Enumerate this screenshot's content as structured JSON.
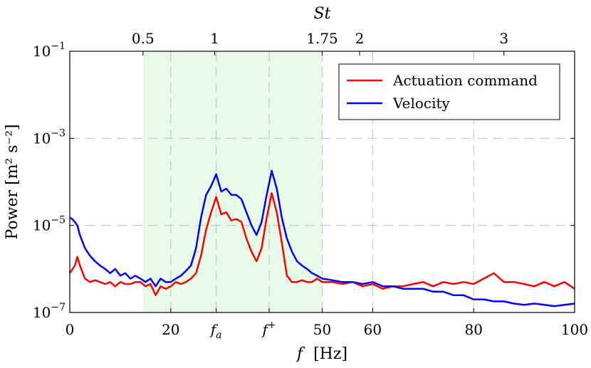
{
  "chart_data": {
    "type": "line",
    "xlabel_var": "f",
    "xlabel_unit": "[Hz]",
    "ylabel": "Power [m² s⁻²]",
    "top_axis_label": "St",
    "yscale": "log",
    "xlim": [
      0,
      100
    ],
    "ylim": [
      1e-07,
      0.1
    ],
    "grid": "dashed",
    "legend_position": "top-right",
    "shaded_band": {
      "x": [
        14.5,
        50
      ],
      "color": "#e8fbe8"
    },
    "x_ticks": [
      {
        "value": 0,
        "label": "0",
        "kind": "text"
      },
      {
        "value": 20,
        "label": "20",
        "kind": "text"
      },
      {
        "value": 29,
        "label": "f",
        "sub": "a",
        "kind": "sub"
      },
      {
        "value": 39.5,
        "label": "f",
        "sup": "+",
        "kind": "sup"
      },
      {
        "value": 50,
        "label": "50",
        "kind": "text"
      },
      {
        "value": 60,
        "label": "60",
        "kind": "text"
      },
      {
        "value": 80,
        "label": "80",
        "kind": "text"
      },
      {
        "value": 100,
        "label": "100",
        "kind": "text"
      }
    ],
    "top_ticks": [
      {
        "x": 14.5,
        "label": "0.5"
      },
      {
        "x": 28.7,
        "label": "1"
      },
      {
        "x": 50.0,
        "label": "1.75"
      },
      {
        "x": 57.4,
        "label": "2"
      },
      {
        "x": 86.0,
        "label": "3"
      }
    ],
    "y_ticks": [
      {
        "value": 1e-07,
        "base": "10",
        "exp": "−7"
      },
      {
        "value": 1e-05,
        "base": "10",
        "exp": "−5"
      },
      {
        "value": 0.001,
        "base": "10",
        "exp": "−3"
      },
      {
        "value": 0.1,
        "base": "10",
        "exp": "−1"
      }
    ],
    "series": [
      {
        "name": "Actuation command",
        "color": "#ff0000",
        "points": [
          [
            0,
            8e-07
          ],
          [
            1,
            1.2e-06
          ],
          [
            1.5,
            1.9e-06
          ],
          [
            2,
            1.2e-06
          ],
          [
            3,
            6e-07
          ],
          [
            4,
            5e-07
          ],
          [
            5,
            5.5e-07
          ],
          [
            6,
            5e-07
          ],
          [
            7,
            4.5e-07
          ],
          [
            8,
            5e-07
          ],
          [
            9,
            4e-07
          ],
          [
            10,
            5e-07
          ],
          [
            11,
            4.5e-07
          ],
          [
            12,
            4.5e-07
          ],
          [
            13,
            5e-07
          ],
          [
            14,
            5e-07
          ],
          [
            15,
            4e-07
          ],
          [
            16,
            4.5e-07
          ],
          [
            17,
            2.5e-07
          ],
          [
            18,
            4e-07
          ],
          [
            19,
            3.5e-07
          ],
          [
            20,
            4e-07
          ],
          [
            21,
            5e-07
          ],
          [
            22,
            4.5e-07
          ],
          [
            23,
            5e-07
          ],
          [
            24,
            6e-07
          ],
          [
            25,
            8e-07
          ],
          [
            26,
            2e-06
          ],
          [
            27,
            8e-06
          ],
          [
            28,
            2e-05
          ],
          [
            29,
            4.5e-05
          ],
          [
            30,
            1.8e-05
          ],
          [
            31,
            2e-05
          ],
          [
            32,
            1.3e-05
          ],
          [
            33,
            1.4e-05
          ],
          [
            34,
            1.2e-05
          ],
          [
            35,
            5e-06
          ],
          [
            36,
            2.5e-06
          ],
          [
            37,
            1.5e-06
          ],
          [
            38,
            3e-06
          ],
          [
            39,
            1.5e-05
          ],
          [
            40,
            5.5e-05
          ],
          [
            41,
            2e-05
          ],
          [
            42,
            4e-06
          ],
          [
            43,
            7e-07
          ],
          [
            44,
            5e-07
          ],
          [
            45,
            5e-07
          ],
          [
            46,
            5.5e-07
          ],
          [
            47,
            5e-07
          ],
          [
            48,
            5e-07
          ],
          [
            49,
            6e-07
          ],
          [
            50,
            5e-07
          ],
          [
            52,
            5e-07
          ],
          [
            54,
            4.5e-07
          ],
          [
            56,
            5e-07
          ],
          [
            58,
            4e-07
          ],
          [
            60,
            4.5e-07
          ],
          [
            62,
            3.5e-07
          ],
          [
            64,
            4e-07
          ],
          [
            66,
            4e-07
          ],
          [
            68,
            4.5e-07
          ],
          [
            70,
            5e-07
          ],
          [
            72,
            4e-07
          ],
          [
            74,
            5e-07
          ],
          [
            76,
            4.5e-07
          ],
          [
            78,
            5e-07
          ],
          [
            80,
            4.5e-07
          ],
          [
            82,
            6e-07
          ],
          [
            84,
            8e-07
          ],
          [
            86,
            5e-07
          ],
          [
            88,
            5e-07
          ],
          [
            90,
            4.5e-07
          ],
          [
            92,
            4e-07
          ],
          [
            94,
            5e-07
          ],
          [
            96,
            4e-07
          ],
          [
            98,
            5e-07
          ],
          [
            100,
            3.5e-07
          ]
        ]
      },
      {
        "name": "Velocity",
        "color": "#0000ff",
        "points": [
          [
            0,
            1.5e-05
          ],
          [
            0.5,
            1.4e-05
          ],
          [
            1,
            1.2e-05
          ],
          [
            1.5,
            1e-05
          ],
          [
            2,
            6e-06
          ],
          [
            3,
            3e-06
          ],
          [
            4,
            2e-06
          ],
          [
            5,
            1.5e-06
          ],
          [
            6,
            1.2e-06
          ],
          [
            7,
            1e-06
          ],
          [
            8,
            8e-07
          ],
          [
            9,
            1e-06
          ],
          [
            10,
            7e-07
          ],
          [
            11,
            8e-07
          ],
          [
            12,
            6e-07
          ],
          [
            13,
            7e-07
          ],
          [
            14,
            6e-07
          ],
          [
            15,
            5e-07
          ],
          [
            16,
            6e-07
          ],
          [
            17,
            4e-07
          ],
          [
            18,
            6e-07
          ],
          [
            19,
            5e-07
          ],
          [
            20,
            5e-07
          ],
          [
            21,
            6e-07
          ],
          [
            22,
            7e-07
          ],
          [
            23,
            9e-07
          ],
          [
            24,
            1.2e-06
          ],
          [
            25,
            3e-06
          ],
          [
            26,
            1.5e-05
          ],
          [
            27,
            5e-05
          ],
          [
            28,
            8e-05
          ],
          [
            29,
            0.00015
          ],
          [
            30,
            6e-05
          ],
          [
            31,
            7e-05
          ],
          [
            32,
            5e-05
          ],
          [
            33,
            5e-05
          ],
          [
            34,
            4e-05
          ],
          [
            35,
            2e-05
          ],
          [
            36,
            1e-05
          ],
          [
            37,
            6e-06
          ],
          [
            38,
            1.2e-05
          ],
          [
            39,
            5e-05
          ],
          [
            40,
            0.00018
          ],
          [
            41,
            7e-05
          ],
          [
            42,
            1.5e-05
          ],
          [
            43,
            5e-06
          ],
          [
            44,
            2.5e-06
          ],
          [
            45,
            1.5e-06
          ],
          [
            46,
            1.2e-06
          ],
          [
            47,
            1e-06
          ],
          [
            48,
            8e-07
          ],
          [
            49,
            7e-07
          ],
          [
            50,
            6e-07
          ],
          [
            52,
            5.5e-07
          ],
          [
            54,
            5e-07
          ],
          [
            56,
            5e-07
          ],
          [
            58,
            4.5e-07
          ],
          [
            60,
            5e-07
          ],
          [
            62,
            4e-07
          ],
          [
            64,
            4e-07
          ],
          [
            66,
            3.5e-07
          ],
          [
            68,
            3.5e-07
          ],
          [
            70,
            3.5e-07
          ],
          [
            72,
            3e-07
          ],
          [
            74,
            3e-07
          ],
          [
            76,
            2.5e-07
          ],
          [
            78,
            2.5e-07
          ],
          [
            80,
            2e-07
          ],
          [
            82,
            2e-07
          ],
          [
            84,
            1.8e-07
          ],
          [
            86,
            1.8e-07
          ],
          [
            88,
            1.6e-07
          ],
          [
            90,
            1.5e-07
          ],
          [
            92,
            1.6e-07
          ],
          [
            94,
            1.5e-07
          ],
          [
            96,
            1.4e-07
          ],
          [
            98,
            1.5e-07
          ],
          [
            100,
            1.6e-07
          ]
        ]
      }
    ]
  }
}
